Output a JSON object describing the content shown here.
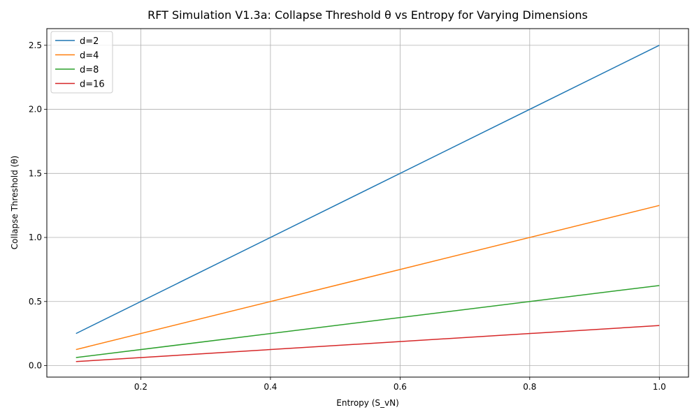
{
  "chart_data": {
    "type": "line",
    "title": "RFT Simulation V1.3a: Collapse Threshold θ vs Entropy for Varying Dimensions",
    "xlabel": "Entropy (S_vN)",
    "ylabel": "Collapse Threshold (θ)",
    "xlim": [
      0.055,
      1.045
    ],
    "ylim": [
      -0.09,
      2.63
    ],
    "x_ticks": [
      0.2,
      0.4,
      0.6,
      0.8,
      1.0
    ],
    "x_tick_labels": [
      "0.2",
      "0.4",
      "0.6",
      "0.8",
      "1.0"
    ],
    "y_ticks": [
      0.0,
      0.5,
      1.0,
      1.5,
      2.0,
      2.5
    ],
    "y_tick_labels": [
      "0.0",
      "0.5",
      "1.0",
      "1.5",
      "2.0",
      "2.5"
    ],
    "grid": true,
    "legend_position": "upper-left",
    "x": [
      0.1,
      1.0
    ],
    "series": [
      {
        "name": "d=2",
        "color": "#1f77b4",
        "values": [
          0.25,
          2.5
        ]
      },
      {
        "name": "d=4",
        "color": "#ff7f0e",
        "values": [
          0.125,
          1.25
        ]
      },
      {
        "name": "d=8",
        "color": "#2ca02c",
        "values": [
          0.0625,
          0.625
        ]
      },
      {
        "name": "d=16",
        "color": "#d62728",
        "values": [
          0.03125,
          0.3125
        ]
      }
    ]
  }
}
